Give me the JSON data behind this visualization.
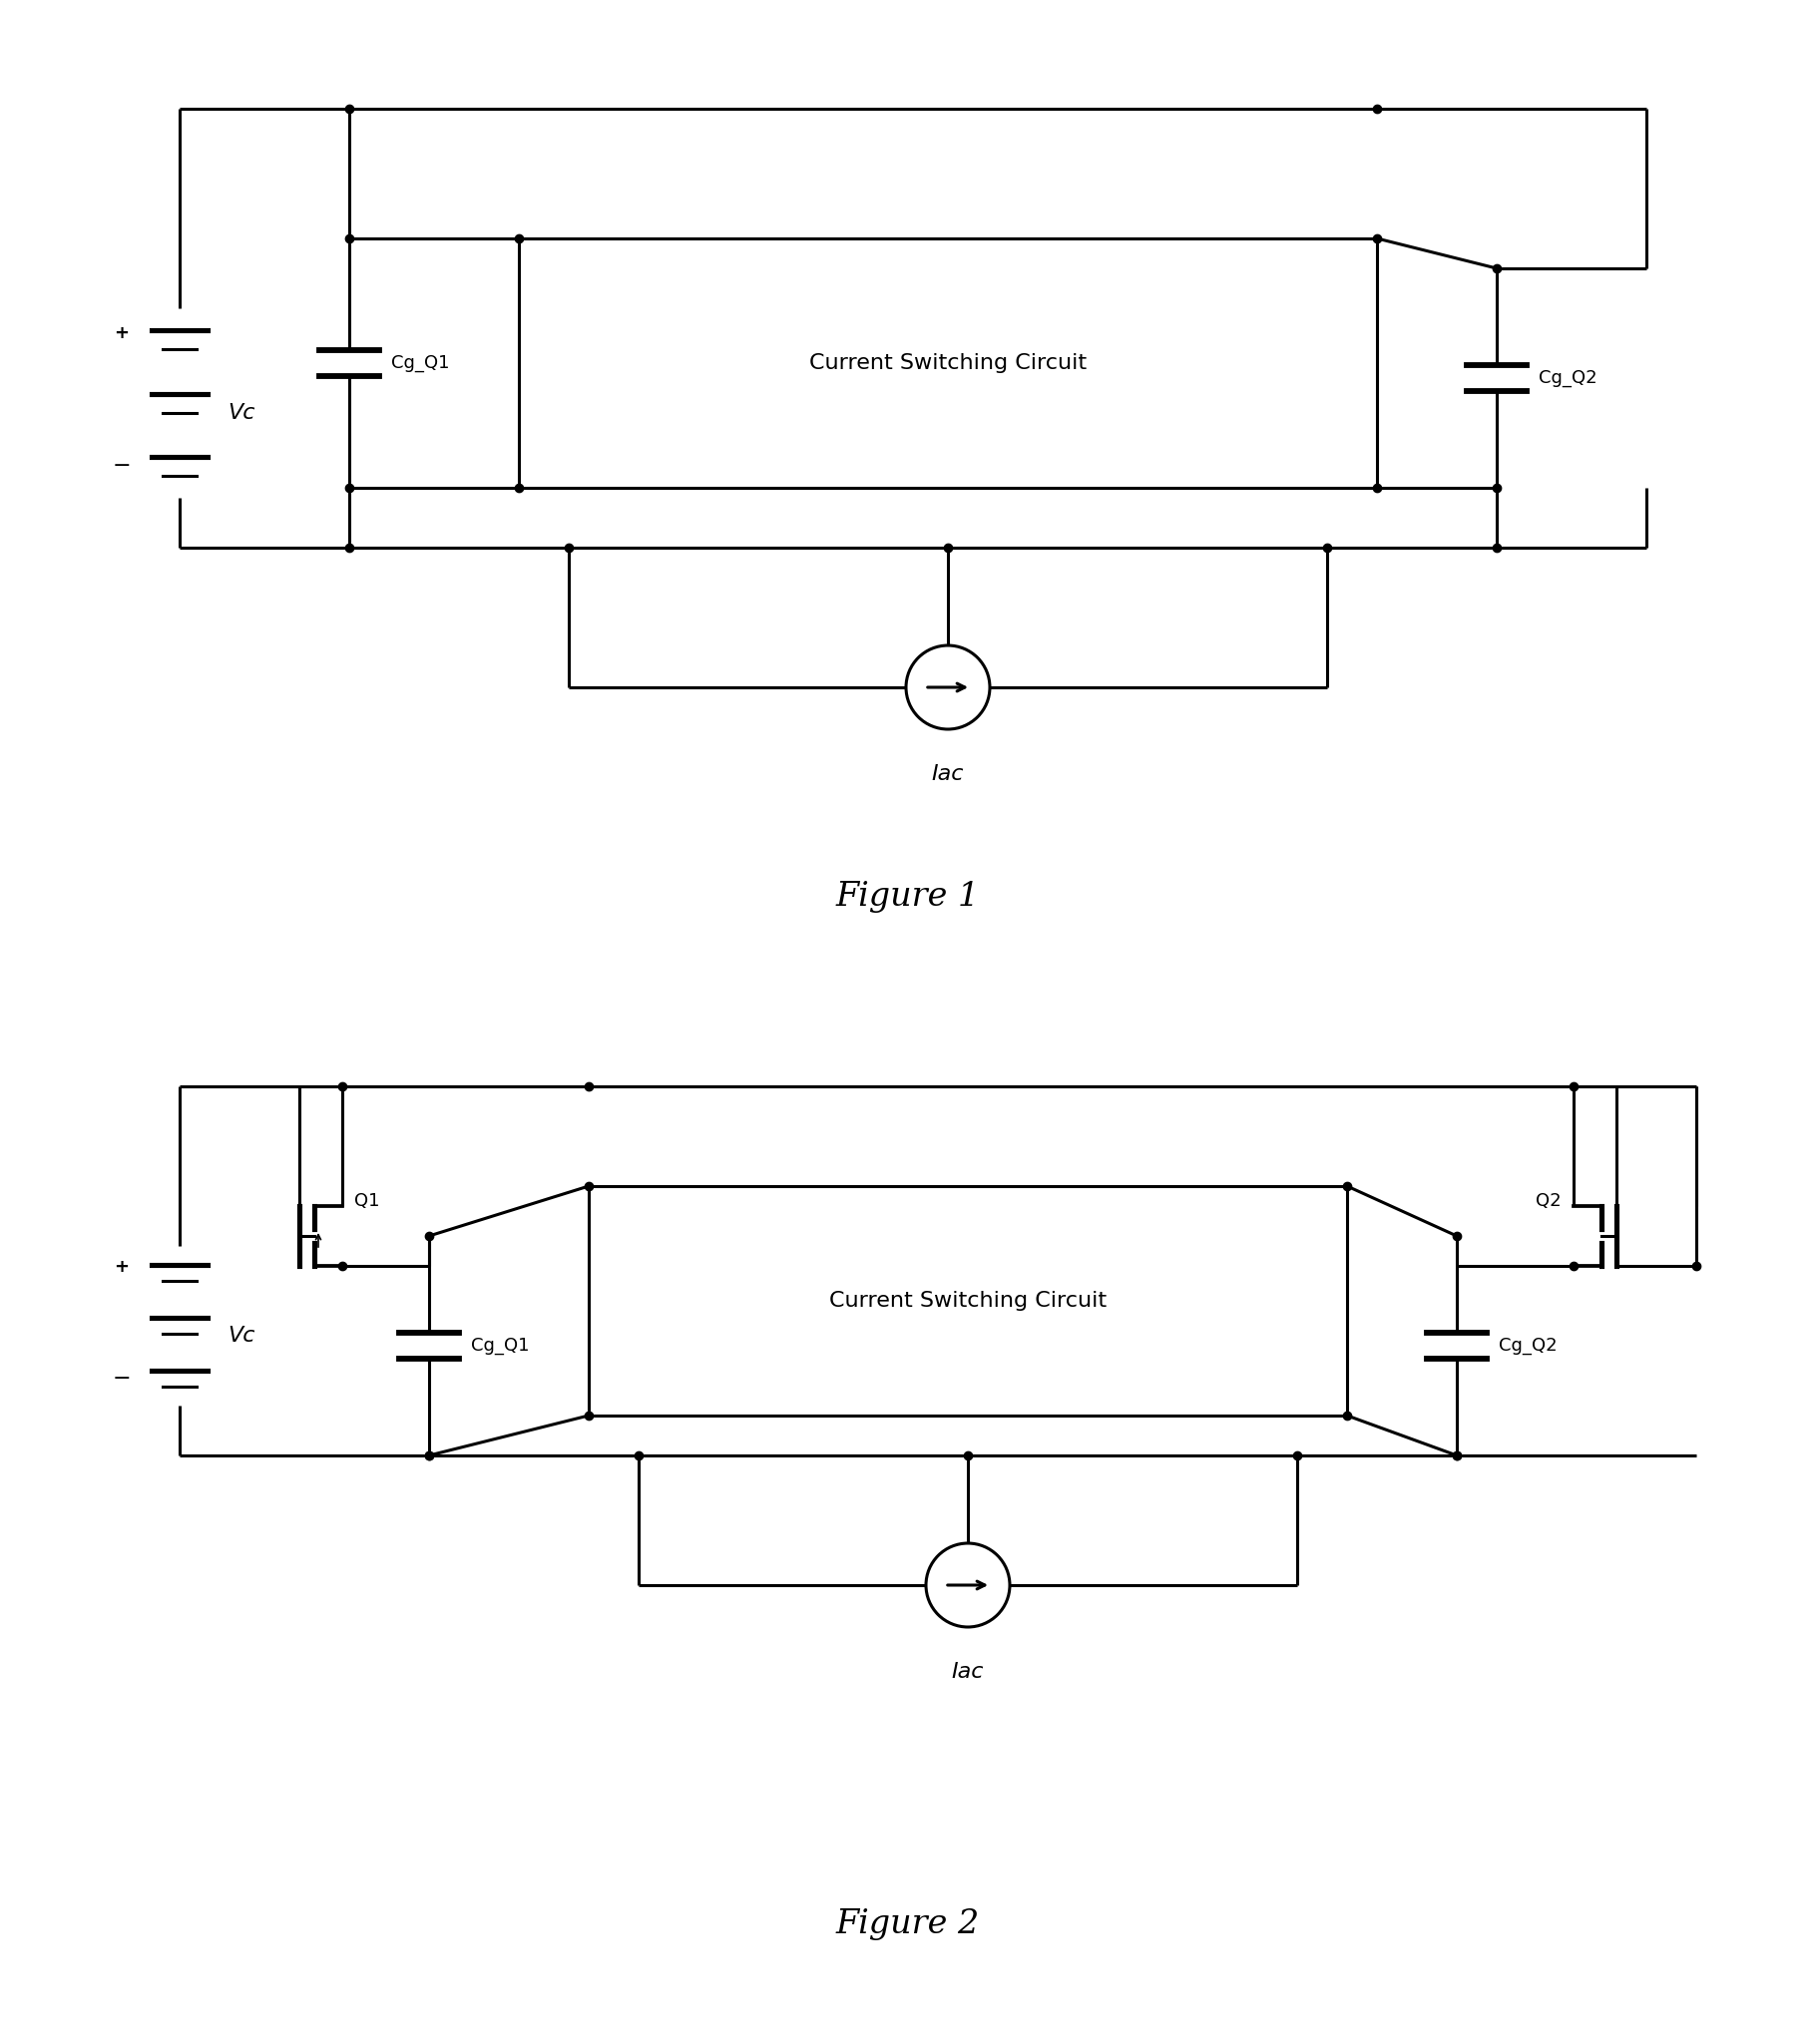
{
  "fig_width": 18.2,
  "fig_height": 20.49,
  "lw": 2.2,
  "dot_size": 6,
  "fig1_title": "Figure 1",
  "fig2_title": "Figure 2",
  "csc_label": "Current Switching Circuit",
  "font_size_label": 13,
  "font_size_title": 24,
  "font_size_vc": 16,
  "font_size_iac": 16,
  "font_size_component": 13
}
